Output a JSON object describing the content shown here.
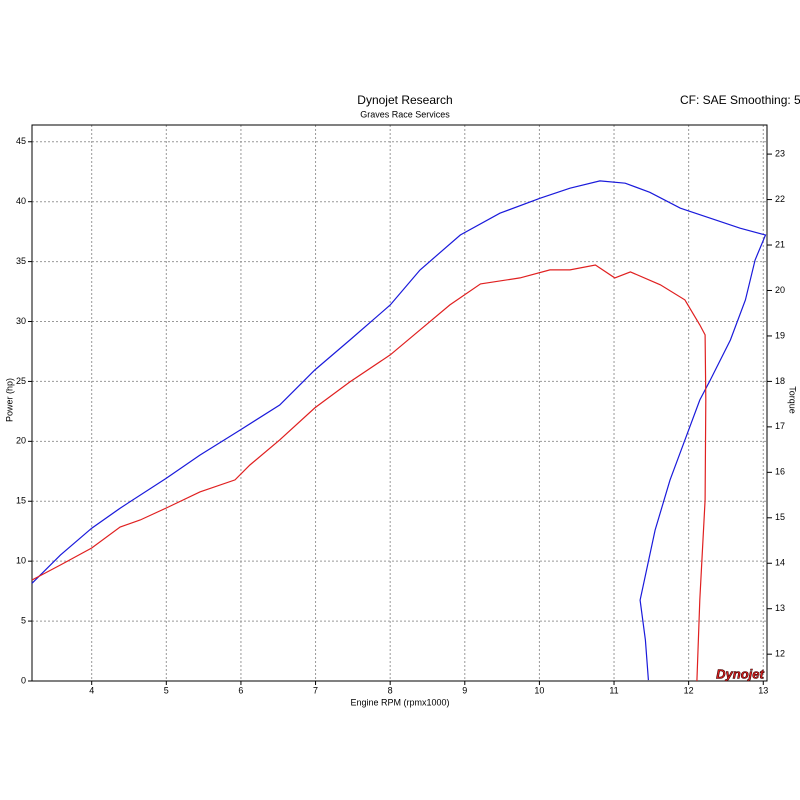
{
  "chart_data": {
    "type": "line",
    "title": "Dynojet Research",
    "subtitle": "Graves Race Services",
    "note": "CF: SAE Smoothing: 5",
    "logo": "Dynojet",
    "x_label": "Engine RPM (rpmx1000)",
    "y_label": "Power (hp)",
    "y2_label": "Torque",
    "xlim": [
      3.2,
      13.05
    ],
    "ylim": [
      0,
      46.4
    ],
    "y2lim": [
      11.41,
      23.64
    ],
    "xticks": [
      4,
      5,
      6,
      7,
      8,
      9,
      10,
      11,
      12,
      13
    ],
    "yticks": [
      0,
      5,
      10,
      15,
      20,
      25,
      30,
      35,
      40,
      45
    ],
    "y2ticks": [
      12,
      13,
      14,
      15,
      16,
      17,
      18,
      19,
      20,
      21,
      22,
      23
    ],
    "grid": true,
    "series": [
      {
        "color": "#1a1adb",
        "axis": "y2",
        "x": [
          3.2,
          3.58,
          4.0,
          4.38,
          5.0,
          5.45,
          5.99,
          6.52,
          6.99,
          7.46,
          8.0,
          8.4,
          8.94,
          9.47,
          10.01,
          10.41,
          10.81,
          11.15,
          11.48,
          11.89,
          12.29,
          12.69,
          13.03,
          12.89,
          12.76,
          12.56,
          12.29,
          12.15,
          11.95,
          11.75,
          11.55,
          11.35,
          11.42,
          11.46
        ],
        "values": [
          13.56,
          14.18,
          14.77,
          15.21,
          15.87,
          16.38,
          16.93,
          17.48,
          18.25,
          18.91,
          19.68,
          20.45,
          21.22,
          21.7,
          22.03,
          22.25,
          22.41,
          22.36,
          22.16,
          21.81,
          21.59,
          21.37,
          21.22,
          20.67,
          19.79,
          18.91,
          18.03,
          17.59,
          16.71,
          15.83,
          14.73,
          13.19,
          12.31,
          11.43
        ]
      },
      {
        "color": "#e02020",
        "axis": "y",
        "x": [
          3.2,
          3.58,
          4.0,
          4.38,
          4.65,
          5.0,
          5.45,
          5.92,
          6.12,
          6.52,
          6.99,
          7.46,
          8.0,
          8.4,
          8.8,
          9.21,
          9.74,
          10.14,
          10.41,
          10.75,
          11.01,
          11.22,
          11.62,
          11.95,
          12.15,
          12.22,
          12.23,
          12.22,
          12.15,
          12.11
        ],
        "values": [
          8.43,
          9.68,
          11.1,
          12.85,
          13.44,
          14.44,
          15.78,
          16.78,
          18.03,
          20.12,
          22.79,
          24.96,
          27.21,
          29.3,
          31.39,
          33.14,
          33.64,
          34.31,
          34.31,
          34.72,
          33.64,
          34.14,
          33.06,
          31.8,
          29.72,
          28.88,
          23.46,
          15.11,
          6.76,
          0
        ]
      }
    ]
  }
}
